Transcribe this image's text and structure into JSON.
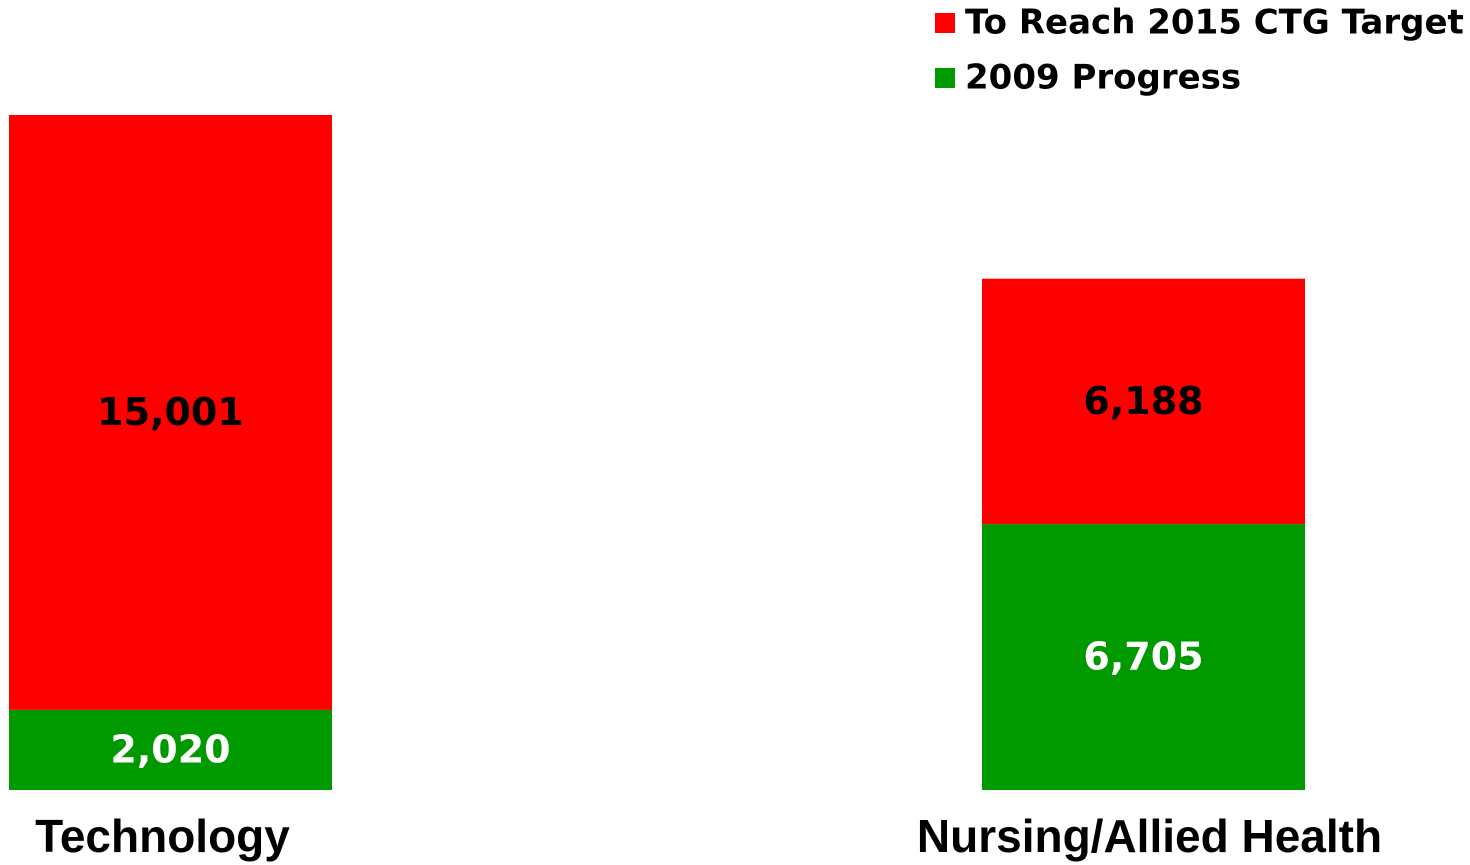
{
  "chart_data": {
    "type": "stacked_bar",
    "categories": [
      "Technology",
      "Nursing/Allied Health"
    ],
    "series": [
      {
        "name": "2009 Progress",
        "color": "#009900",
        "label_color": "#ffffff",
        "values": [
          2020,
          6705
        ],
        "value_labels": [
          "2,020",
          "6,705"
        ]
      },
      {
        "name": "To Reach 2015 CTG Target",
        "color": "#ff0000",
        "label_color": "#000000",
        "values": [
          15001,
          6188
        ],
        "value_labels": [
          "15,001",
          "6,188"
        ]
      }
    ],
    "legend": "top-right"
  }
}
